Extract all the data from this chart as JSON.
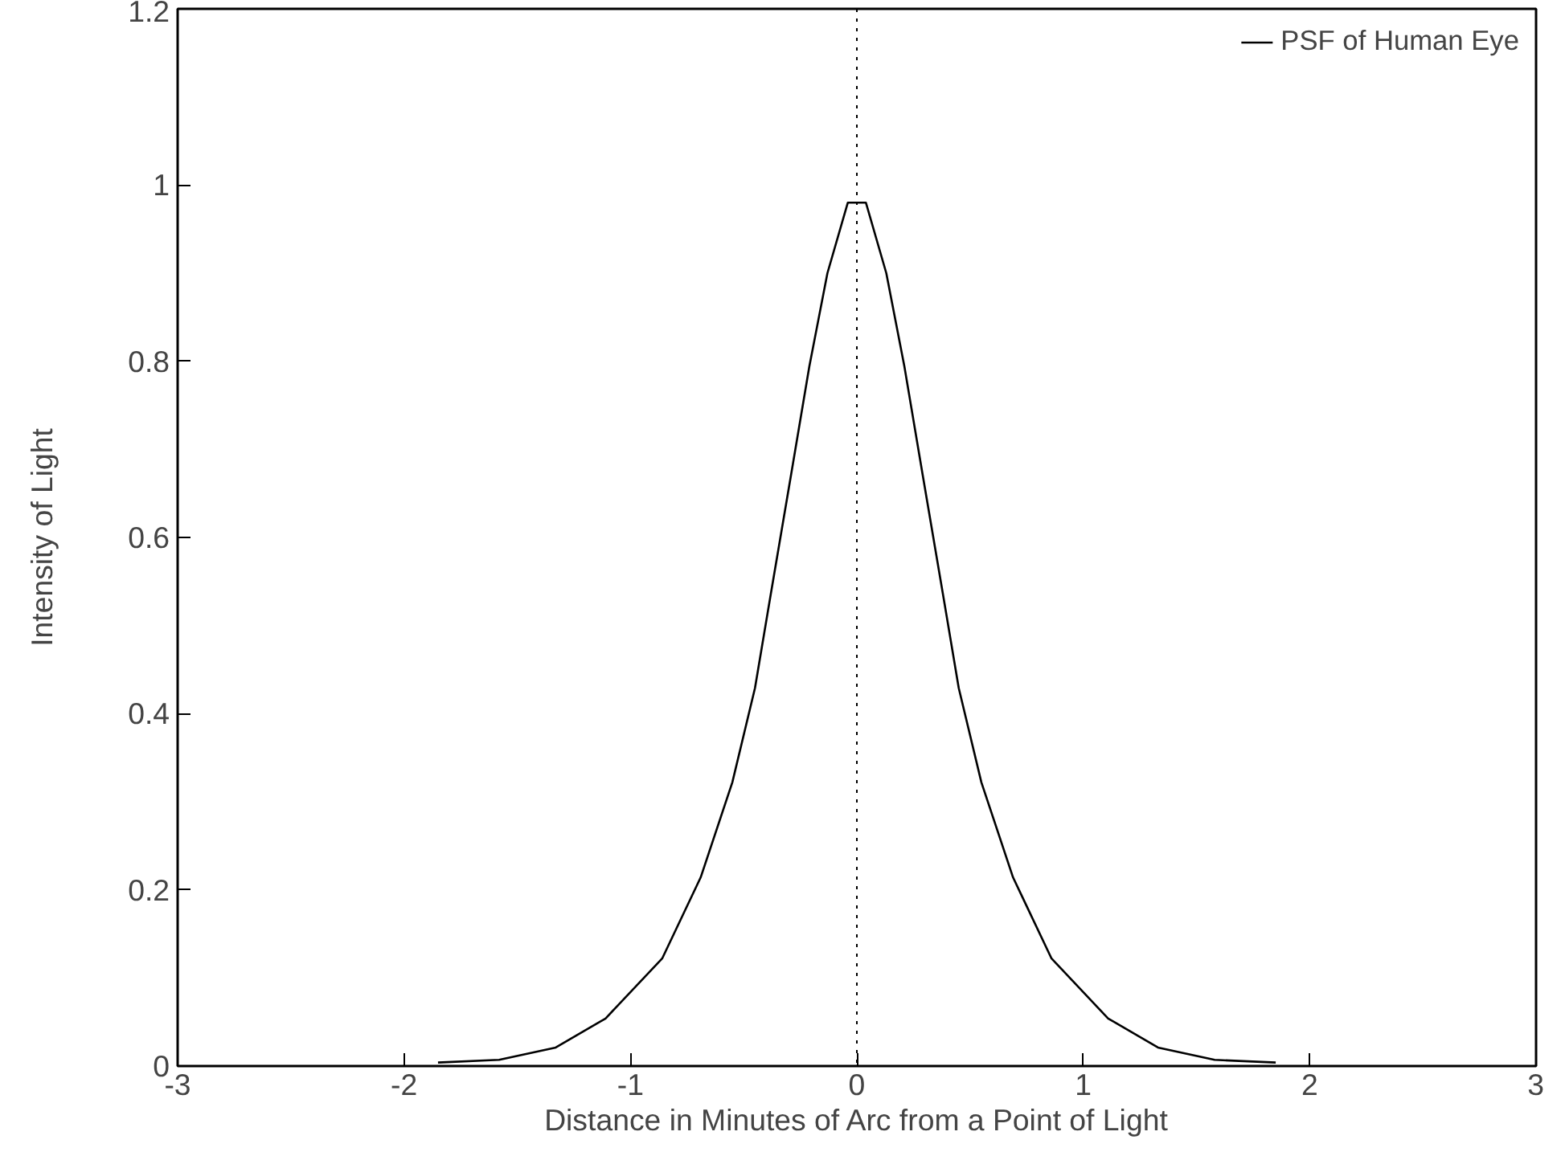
{
  "chart_data": {
    "type": "line",
    "xlabel": "Distance in Minutes of Arc from a Point of Light",
    "ylabel": "Intensity of Light",
    "xlim": [
      -3,
      3
    ],
    "ylim": [
      0,
      1.2
    ],
    "xticks": [
      -3,
      -2,
      -1,
      0,
      1,
      2,
      3
    ],
    "yticks": [
      0,
      0.2,
      0.4,
      0.6,
      0.8,
      1,
      1.2
    ],
    "grid": false,
    "legend": "top right",
    "ref_lines": [
      {
        "axis": "x",
        "value": 0,
        "line_style": "dotted",
        "color": "#000000"
      }
    ],
    "series": [
      {
        "name": "PSF of Human Eye",
        "color": "#000000",
        "line_style": "solid",
        "x": [
          -1.85,
          -1.58,
          -1.33,
          -1.11,
          -0.86,
          -0.69,
          -0.55,
          -0.45,
          -0.38,
          -0.29,
          -0.21,
          -0.13,
          -0.04,
          0,
          0.04,
          0.13,
          0.21,
          0.29,
          0.38,
          0.45,
          0.55,
          0.69,
          0.86,
          1.11,
          1.33,
          1.58,
          1.85
        ],
        "values": [
          0.004,
          0.007,
          0.021,
          0.054,
          0.122,
          0.214,
          0.322,
          0.429,
          0.536,
          0.672,
          0.794,
          0.9,
          0.98,
          0.98,
          0.98,
          0.9,
          0.794,
          0.672,
          0.536,
          0.429,
          0.322,
          0.214,
          0.122,
          0.054,
          0.021,
          0.007,
          0.004
        ]
      }
    ]
  }
}
